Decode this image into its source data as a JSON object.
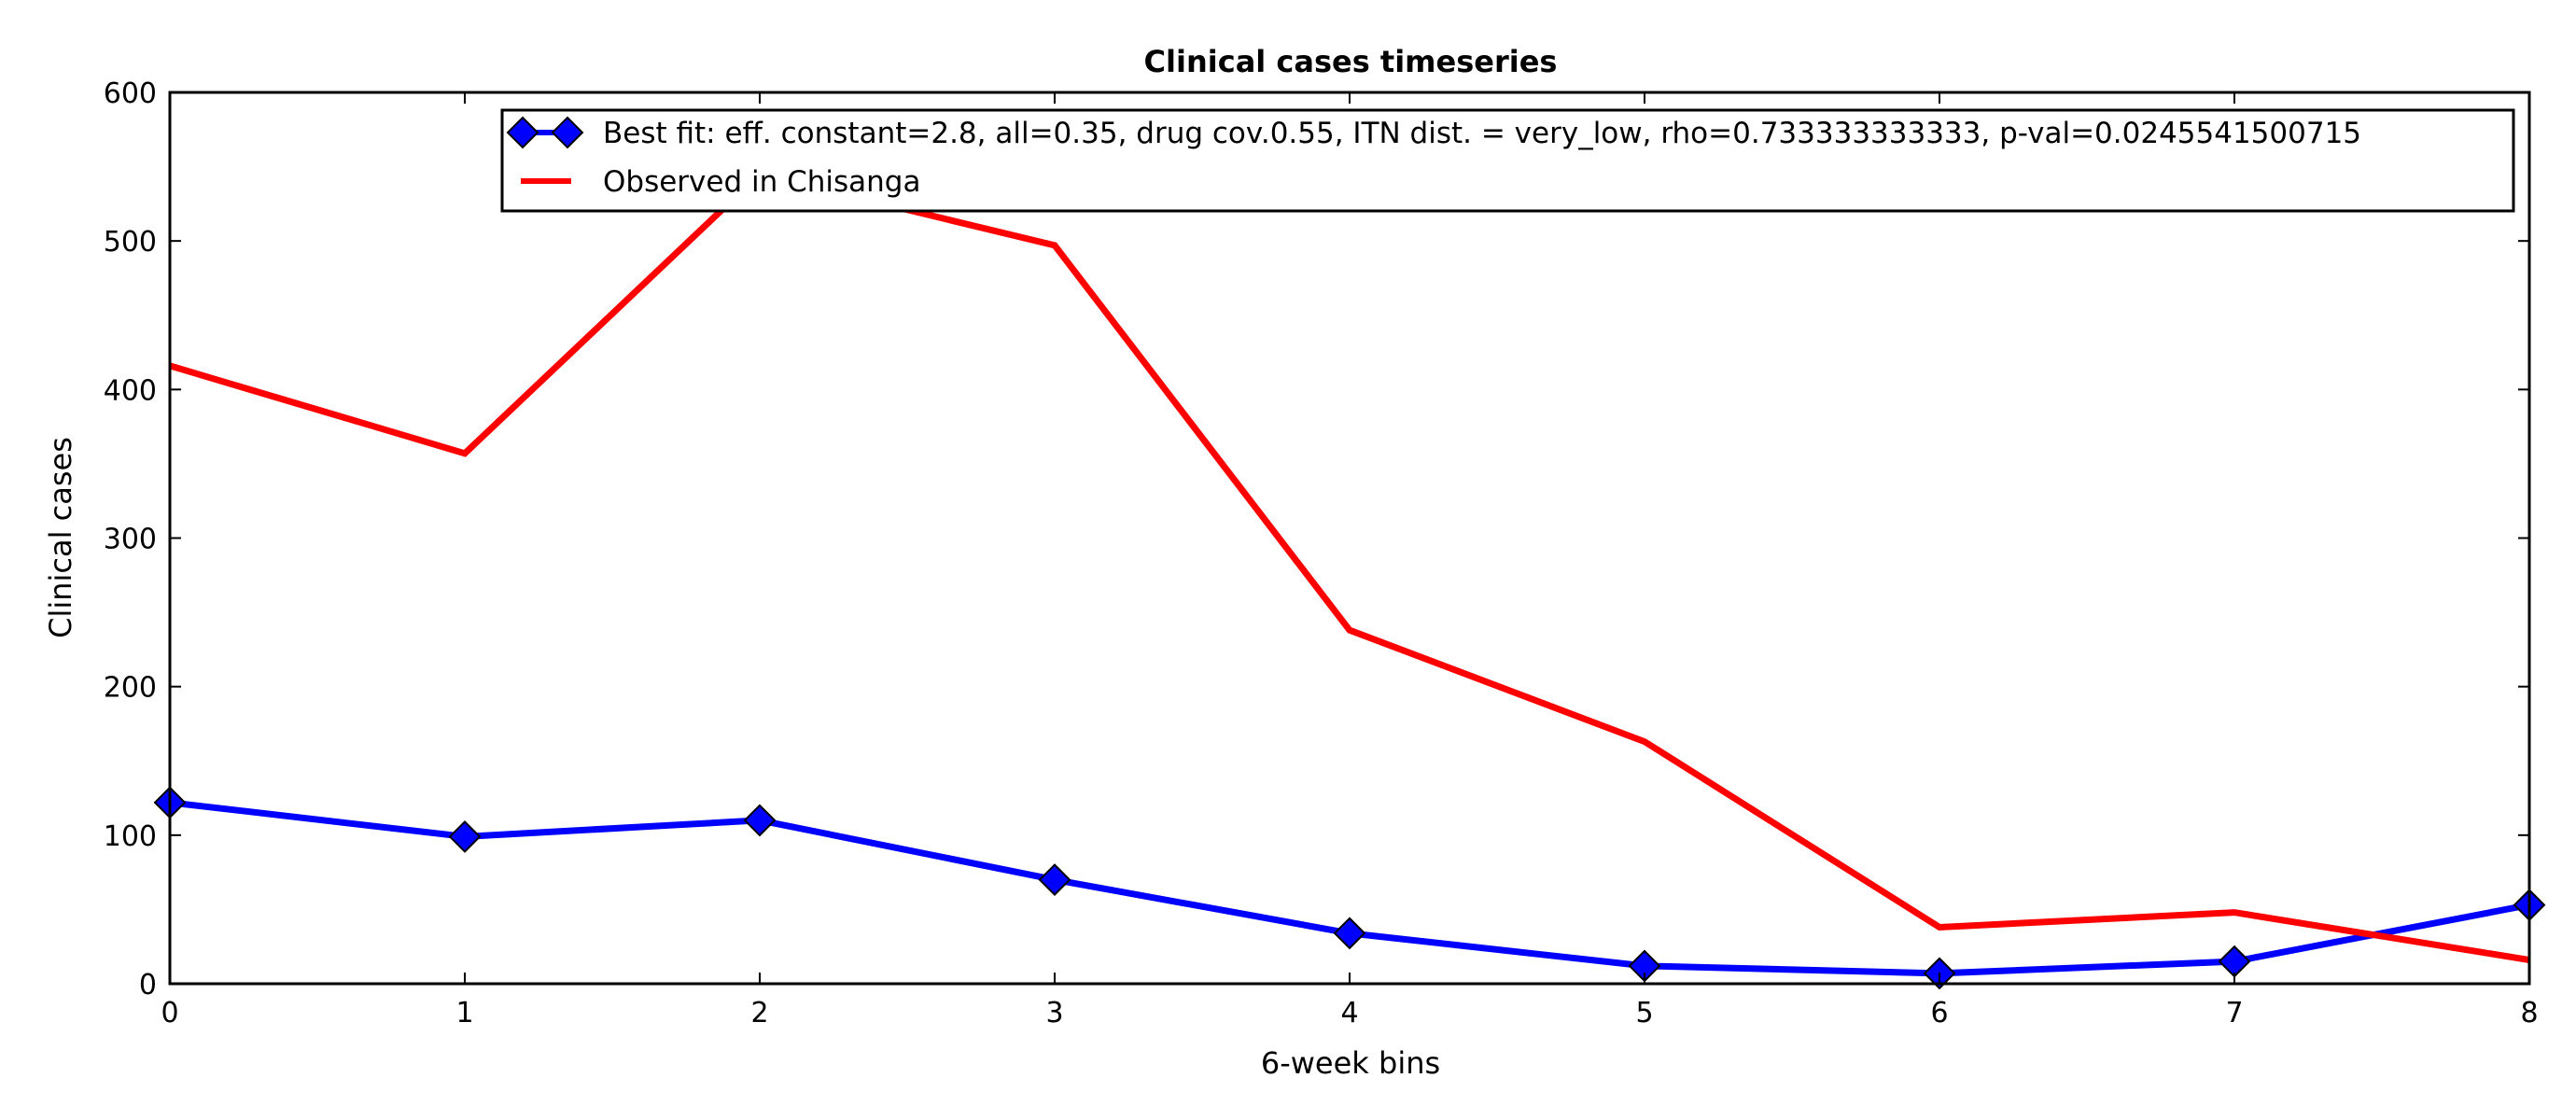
{
  "chart_data": {
    "type": "line",
    "title": "Clinical cases timeseries",
    "xlabel": "6-week bins",
    "ylabel": "Clinical cases",
    "x": [
      0,
      1,
      2,
      3,
      4,
      5,
      6,
      7,
      8
    ],
    "xlim": [
      0,
      8
    ],
    "ylim": [
      0,
      600
    ],
    "xticks": [
      0,
      1,
      2,
      3,
      4,
      5,
      6,
      7,
      8
    ],
    "yticks": [
      0,
      100,
      200,
      300,
      400,
      500,
      600
    ],
    "grid": false,
    "legend_position": "top-right",
    "series": [
      {
        "name": "Best fit: eff. constant=2.8, all=0.35, drug cov.0.55, ITN dist. = very_low, rho=0.733333333333, p-val=0.0245541500715",
        "color": "#0000ff",
        "marker": "diamond",
        "values": [
          122,
          99,
          110,
          70,
          34,
          12,
          7,
          15,
          53
        ]
      },
      {
        "name": "Observed in Chisanga",
        "color": "#ff0000",
        "marker": "none",
        "values": [
          416,
          357,
          545,
          497,
          238,
          163,
          38,
          48,
          16
        ]
      }
    ]
  }
}
